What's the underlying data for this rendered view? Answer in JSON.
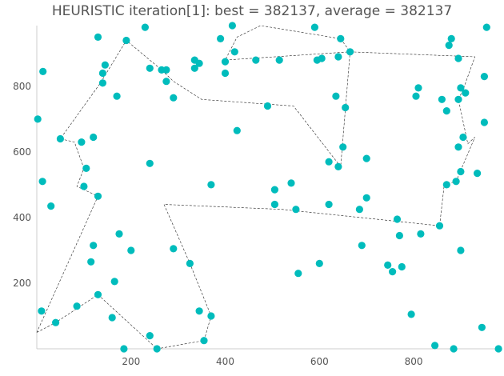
{
  "chart_data": {
    "type": "scatter",
    "title": "HEURISTIC iteration[1]: best = 382137, average = 382137",
    "xlabel": "",
    "ylabel": "",
    "xlim": [
      0,
      985
    ],
    "ylim": [
      0,
      985
    ],
    "xticks": [
      "200",
      "400",
      "600",
      "800"
    ],
    "xtick_values": [
      200,
      400,
      600,
      800
    ],
    "yticks": [
      "200",
      "400",
      "600",
      "800"
    ],
    "ytick_values": [
      200,
      400,
      600,
      800
    ],
    "grid": false,
    "marker_color": "#00bcbc",
    "path_color": "#222222",
    "points": [
      [
        2,
        700
      ],
      [
        13,
        845
      ],
      [
        12,
        510
      ],
      [
        30,
        435
      ],
      [
        10,
        115
      ],
      [
        40,
        80
      ],
      [
        85,
        130
      ],
      [
        130,
        165
      ],
      [
        160,
        95
      ],
      [
        185,
        0
      ],
      [
        240,
        40
      ],
      [
        255,
        0
      ],
      [
        355,
        25
      ],
      [
        345,
        115
      ],
      [
        370,
        100
      ],
      [
        325,
        260
      ],
      [
        370,
        500
      ],
      [
        290,
        305
      ],
      [
        240,
        565
      ],
      [
        200,
        300
      ],
      [
        175,
        350
      ],
      [
        165,
        205
      ],
      [
        115,
        265
      ],
      [
        120,
        315
      ],
      [
        100,
        495
      ],
      [
        130,
        465
      ],
      [
        105,
        550
      ],
      [
        95,
        630
      ],
      [
        50,
        640
      ],
      [
        120,
        645
      ],
      [
        170,
        770
      ],
      [
        140,
        810
      ],
      [
        140,
        840
      ],
      [
        145,
        865
      ],
      [
        130,
        950
      ],
      [
        190,
        940
      ],
      [
        240,
        855
      ],
      [
        230,
        980
      ],
      [
        265,
        850
      ],
      [
        275,
        850
      ],
      [
        275,
        815
      ],
      [
        290,
        765
      ],
      [
        335,
        880
      ],
      [
        335,
        855
      ],
      [
        345,
        870
      ],
      [
        390,
        945
      ],
      [
        415,
        985
      ],
      [
        420,
        905
      ],
      [
        400,
        875
      ],
      [
        400,
        840
      ],
      [
        465,
        880
      ],
      [
        515,
        880
      ],
      [
        590,
        980
      ],
      [
        645,
        945
      ],
      [
        665,
        905
      ],
      [
        595,
        880
      ],
      [
        605,
        885
      ],
      [
        640,
        890
      ],
      [
        635,
        770
      ],
      [
        655,
        735
      ],
      [
        620,
        570
      ],
      [
        640,
        555
      ],
      [
        650,
        615
      ],
      [
        700,
        580
      ],
      [
        490,
        740
      ],
      [
        540,
        505
      ],
      [
        555,
        230
      ],
      [
        600,
        260
      ],
      [
        690,
        315
      ],
      [
        700,
        460
      ],
      [
        765,
        395
      ],
      [
        770,
        345
      ],
      [
        745,
        255
      ],
      [
        755,
        235
      ],
      [
        775,
        250
      ],
      [
        795,
        105
      ],
      [
        845,
        10
      ],
      [
        885,
        0
      ],
      [
        900,
        300
      ],
      [
        945,
        65
      ],
      [
        900,
        540
      ],
      [
        935,
        535
      ],
      [
        890,
        510
      ],
      [
        905,
        645
      ],
      [
        895,
        615
      ],
      [
        870,
        725
      ],
      [
        895,
        760
      ],
      [
        900,
        795
      ],
      [
        910,
        780
      ],
      [
        860,
        760
      ],
      [
        815,
        350
      ],
      [
        805,
        770
      ],
      [
        810,
        795
      ],
      [
        875,
        925
      ],
      [
        880,
        945
      ],
      [
        895,
        885
      ],
      [
        950,
        690
      ],
      [
        955,
        980
      ],
      [
        950,
        830
      ],
      [
        505,
        485
      ],
      [
        620,
        440
      ],
      [
        505,
        440
      ],
      [
        425,
        665
      ],
      [
        550,
        425
      ],
      [
        685,
        425
      ],
      [
        855,
        375
      ],
      [
        870,
        500
      ],
      [
        980,
        0
      ]
    ],
    "tour": [
      [
        0,
        50
      ],
      [
        40,
        80
      ],
      [
        130,
        165
      ],
      [
        255,
        0
      ],
      [
        355,
        25
      ],
      [
        370,
        100
      ],
      [
        325,
        260
      ],
      [
        270,
        440
      ],
      [
        520,
        425
      ],
      [
        855,
        375
      ],
      [
        865,
        500
      ],
      [
        890,
        510
      ],
      [
        930,
        645
      ],
      [
        915,
        625
      ],
      [
        895,
        760
      ],
      [
        905,
        790
      ],
      [
        930,
        890
      ],
      [
        665,
        905
      ],
      [
        645,
        945
      ],
      [
        475,
        985
      ],
      [
        425,
        950
      ],
      [
        400,
        880
      ],
      [
        665,
        905
      ],
      [
        645,
        555
      ],
      [
        545,
        740
      ],
      [
        350,
        760
      ],
      [
        290,
        815
      ],
      [
        265,
        850
      ],
      [
        190,
        940
      ],
      [
        135,
        810
      ],
      [
        50,
        640
      ],
      [
        80,
        630
      ],
      [
        100,
        550
      ],
      [
        85,
        495
      ],
      [
        130,
        465
      ],
      [
        0,
        50
      ]
    ]
  }
}
